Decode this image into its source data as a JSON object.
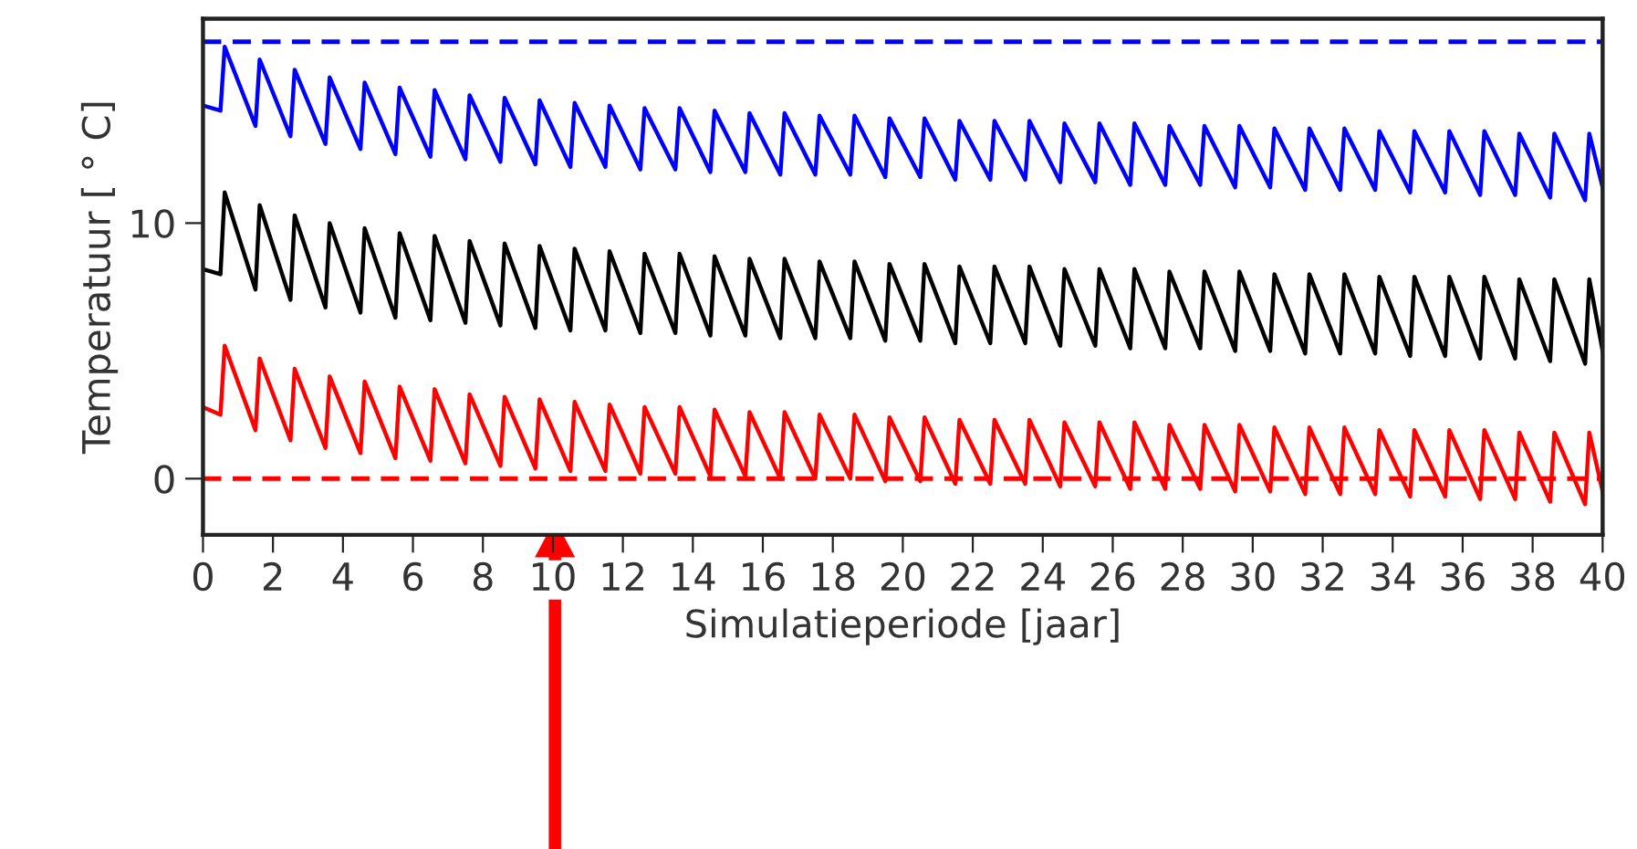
{
  "chart_data": {
    "type": "line",
    "xlabel": "Simulatieperiode [jaar]",
    "ylabel": "Temperatuur [ ° C]",
    "x": [
      0,
      0.5,
      0.62,
      1.5,
      1.62,
      2.5,
      2.62,
      3.5,
      3.62,
      4.5,
      4.62,
      5.5,
      5.62,
      6.5,
      6.62,
      7.5,
      7.62,
      8.5,
      8.62,
      9.5,
      9.62,
      10.5,
      10.62,
      11.5,
      11.62,
      12.5,
      12.62,
      13.5,
      13.62,
      14.5,
      14.62,
      15.5,
      15.62,
      16.5,
      16.62,
      17.5,
      17.62,
      18.5,
      18.62,
      19.5,
      19.62,
      20.5,
      20.62,
      21.5,
      21.62,
      22.5,
      22.62,
      23.5,
      23.62,
      24.5,
      24.62,
      25.5,
      25.62,
      26.5,
      26.62,
      27.5,
      27.62,
      28.5,
      28.62,
      29.5,
      29.62,
      30.5,
      30.62,
      31.5,
      31.62,
      32.5,
      32.62,
      33.5,
      33.62,
      34.5,
      34.62,
      35.5,
      35.62,
      36.5,
      36.62,
      37.5,
      37.62,
      38.5,
      38.62,
      39.5,
      39.62,
      40
    ],
    "series": [
      {
        "color": "#0000ff",
        "values": [
          14.6,
          14.4,
          16.9,
          13.8,
          16.4,
          13.4,
          16.0,
          13.1,
          15.7,
          12.9,
          15.5,
          12.7,
          15.3,
          12.6,
          15.2,
          12.5,
          15.0,
          12.4,
          14.9,
          12.3,
          14.8,
          12.2,
          14.7,
          12.2,
          14.6,
          12.1,
          14.5,
          12.1,
          14.5,
          12.0,
          14.4,
          12.0,
          14.3,
          11.9,
          14.3,
          11.9,
          14.2,
          11.9,
          14.2,
          11.8,
          14.1,
          11.8,
          14.1,
          11.7,
          14.0,
          11.7,
          14.0,
          11.7,
          14.0,
          11.6,
          13.9,
          11.6,
          13.9,
          11.5,
          13.9,
          11.5,
          13.8,
          11.5,
          13.8,
          11.4,
          13.8,
          11.4,
          13.7,
          11.3,
          13.7,
          11.3,
          13.7,
          11.3,
          13.6,
          11.2,
          13.6,
          11.2,
          13.6,
          11.1,
          13.6,
          11.1,
          13.5,
          11.0,
          13.5,
          10.9,
          13.5,
          11.4
        ]
      },
      {
        "color": "#000000",
        "values": [
          8.2,
          8.0,
          11.2,
          7.4,
          10.7,
          7.0,
          10.3,
          6.7,
          10.0,
          6.5,
          9.8,
          6.3,
          9.6,
          6.2,
          9.5,
          6.1,
          9.3,
          6.0,
          9.2,
          5.9,
          9.1,
          5.8,
          9.0,
          5.8,
          8.9,
          5.7,
          8.8,
          5.7,
          8.8,
          5.6,
          8.7,
          5.6,
          8.6,
          5.5,
          8.6,
          5.5,
          8.5,
          5.5,
          8.5,
          5.4,
          8.4,
          5.4,
          8.4,
          5.3,
          8.3,
          5.3,
          8.3,
          5.3,
          8.3,
          5.2,
          8.2,
          5.2,
          8.2,
          5.1,
          8.2,
          5.1,
          8.1,
          5.1,
          8.1,
          5.0,
          8.1,
          5.0,
          8.0,
          4.9,
          8.0,
          4.9,
          8.0,
          4.9,
          7.9,
          4.8,
          7.9,
          4.8,
          7.9,
          4.7,
          7.9,
          4.7,
          7.8,
          4.6,
          7.8,
          4.5,
          7.8,
          5.0
        ]
      },
      {
        "color": "#ff0000",
        "values": [
          2.8,
          2.5,
          5.2,
          1.9,
          4.7,
          1.5,
          4.3,
          1.2,
          4.0,
          1.0,
          3.8,
          0.8,
          3.6,
          0.7,
          3.5,
          0.6,
          3.3,
          0.5,
          3.2,
          0.4,
          3.1,
          0.3,
          3.0,
          0.3,
          2.9,
          0.2,
          2.8,
          0.2,
          2.8,
          0.1,
          2.7,
          0.1,
          2.6,
          0.0,
          2.6,
          0.0,
          2.5,
          0.0,
          2.5,
          -0.1,
          2.4,
          -0.1,
          2.4,
          -0.2,
          2.3,
          -0.2,
          2.3,
          -0.2,
          2.3,
          -0.3,
          2.2,
          -0.3,
          2.2,
          -0.4,
          2.2,
          -0.4,
          2.1,
          -0.4,
          2.1,
          -0.5,
          2.1,
          -0.5,
          2.0,
          -0.6,
          2.0,
          -0.6,
          2.0,
          -0.6,
          1.9,
          -0.7,
          1.9,
          -0.7,
          1.9,
          -0.8,
          1.9,
          -0.8,
          1.8,
          -0.9,
          1.8,
          -1.0,
          1.8,
          -0.5
        ]
      }
    ],
    "ref_lines": [
      {
        "axis": "y",
        "value": 17.1,
        "label": null,
        "color": "#0000ff",
        "line_style": "dashed"
      },
      {
        "axis": "y",
        "value": 0,
        "label": null,
        "color": "#ff0000",
        "line_style": "dashed"
      }
    ],
    "xlim": [
      0,
      40
    ],
    "ylim": [
      -2.2,
      18.0
    ],
    "xticks": [
      0,
      2,
      4,
      6,
      8,
      10,
      12,
      14,
      16,
      18,
      20,
      22,
      24,
      26,
      28,
      30,
      32,
      34,
      36,
      38,
      40
    ],
    "yticks": [
      0,
      10
    ],
    "grid": false,
    "legend": false,
    "marker": "none",
    "line_style": "solid"
  }
}
